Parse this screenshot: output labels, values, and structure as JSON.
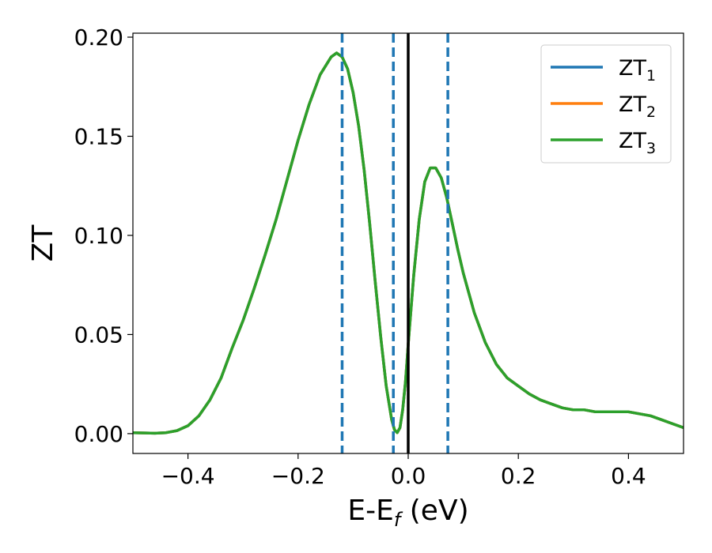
{
  "chart_data": {
    "type": "line",
    "title": "",
    "xlabel": "E-E",
    "xlabel_sub": "f",
    "xlabel_unit": " (eV)",
    "ylabel": "ZT",
    "xlim": [
      -0.5,
      0.5
    ],
    "ylim": [
      -0.01,
      0.202
    ],
    "x_ticks": [
      -0.4,
      -0.2,
      0.0,
      0.2,
      0.4
    ],
    "x_tick_labels": [
      "−0.4",
      "−0.2",
      "0.0",
      "0.2",
      "0.4"
    ],
    "y_ticks": [
      0.0,
      0.05,
      0.1,
      0.15,
      0.2
    ],
    "y_tick_labels": [
      "0.00",
      "0.05",
      "0.10",
      "0.15",
      "0.20"
    ],
    "grid": false,
    "legend_position": "top-right",
    "series": [
      {
        "name": "ZT",
        "sub": "1",
        "color": "#1f77b4"
      },
      {
        "name": "ZT",
        "sub": "2",
        "color": "#ff7f0e"
      },
      {
        "name": "ZT",
        "sub": "3",
        "color": "#2ca02c"
      }
    ],
    "curve": {
      "x": [
        -0.5,
        -0.46,
        -0.44,
        -0.42,
        -0.4,
        -0.38,
        -0.36,
        -0.34,
        -0.32,
        -0.3,
        -0.28,
        -0.26,
        -0.24,
        -0.22,
        -0.2,
        -0.18,
        -0.16,
        -0.14,
        -0.13,
        -0.12,
        -0.11,
        -0.1,
        -0.09,
        -0.08,
        -0.07,
        -0.06,
        -0.05,
        -0.04,
        -0.03,
        -0.025,
        -0.02,
        -0.015,
        -0.01,
        -0.005,
        0.0,
        0.01,
        0.02,
        0.03,
        0.04,
        0.05,
        0.06,
        0.07,
        0.08,
        0.09,
        0.1,
        0.12,
        0.14,
        0.16,
        0.18,
        0.2,
        0.22,
        0.24,
        0.26,
        0.28,
        0.3,
        0.32,
        0.34,
        0.36,
        0.38,
        0.4,
        0.42,
        0.44,
        0.46,
        0.48,
        0.5
      ],
      "y": [
        0.0005,
        0.0002,
        0.0005,
        0.0015,
        0.004,
        0.009,
        0.017,
        0.028,
        0.043,
        0.057,
        0.073,
        0.09,
        0.108,
        0.128,
        0.148,
        0.166,
        0.181,
        0.19,
        0.192,
        0.19,
        0.184,
        0.172,
        0.155,
        0.133,
        0.106,
        0.077,
        0.049,
        0.024,
        0.007,
        0.002,
        0.0005,
        0.003,
        0.012,
        0.026,
        0.045,
        0.08,
        0.108,
        0.127,
        0.134,
        0.134,
        0.129,
        0.119,
        0.106,
        0.093,
        0.081,
        0.061,
        0.046,
        0.035,
        0.028,
        0.024,
        0.02,
        0.017,
        0.015,
        0.013,
        0.012,
        0.012,
        0.011,
        0.011,
        0.011,
        0.011,
        0.01,
        0.009,
        0.007,
        0.005,
        0.003
      ]
    },
    "dashed_vlines": {
      "color": "#1f77b4",
      "x": [
        -0.12,
        -0.027,
        0.072
      ]
    },
    "solid_vline": {
      "color": "#000000",
      "x": 0.0
    }
  }
}
